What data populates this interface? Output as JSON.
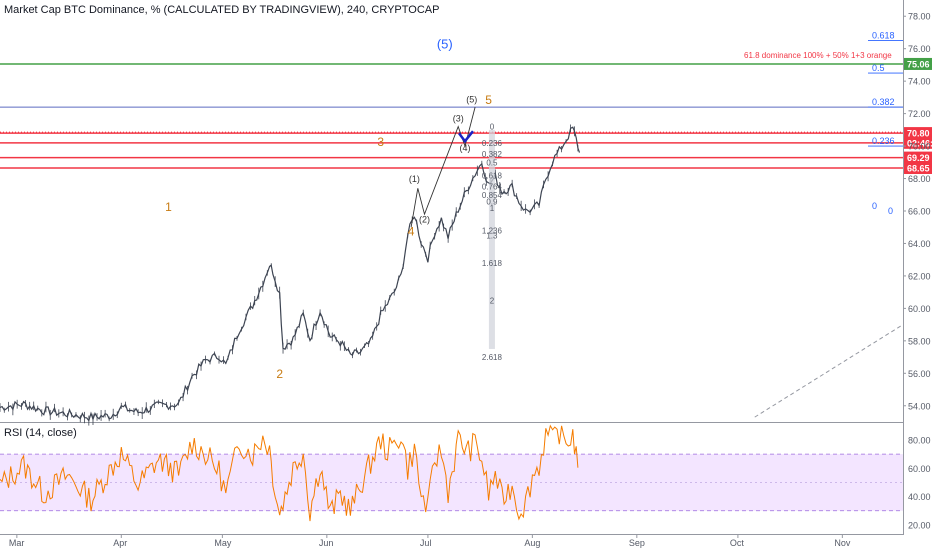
{
  "header": {
    "title": "Market Cap BTC Dominance, % (CALCULATED BY TRADINGVIEW), 240, CRYPTOCAP",
    "rsi_title": "RSI (14, close)"
  },
  "colors": {
    "price_up": "#26a69a",
    "price_down": "#ef5350",
    "candle": "#3d4452",
    "red_line": "#f23645",
    "green_line": "#43a047",
    "blue_line": "#5c6bc0",
    "fib_blue": "#2962ff",
    "wave_orange": "#c77b12",
    "rsi_line": "#f57c00",
    "rsi_band": "#f3e5ff"
  },
  "chart_data": [
    {
      "type": "line",
      "title": "Market Cap BTC Dominance, % (CALCULATED BY TRADINGVIEW), 240, CRYPTOCAP",
      "x_ticks": [
        "Mar",
        "Apr",
        "May",
        "Jun",
        "Jul",
        "Aug",
        "Sep",
        "Oct",
        "Nov"
      ],
      "y_ticks": [
        "54.00",
        "56.00",
        "58.00",
        "60.00",
        "62.00",
        "64.00",
        "66.00",
        "68.00",
        "70.00",
        "72.00",
        "74.00",
        "76.00",
        "78.00"
      ],
      "ylim": [
        53.0,
        79.0
      ],
      "x_days": [
        0,
        31,
        61,
        92,
        122,
        153,
        184,
        214,
        245
      ],
      "xlim_days": [
        -5,
        263
      ],
      "series_anchor": [
        [
          -5,
          53.9
        ],
        [
          2,
          54.1
        ],
        [
          8,
          53.7
        ],
        [
          15,
          53.5
        ],
        [
          22,
          53.3
        ],
        [
          28,
          53.4
        ],
        [
          31,
          53.9
        ],
        [
          36,
          53.6
        ],
        [
          42,
          54.0
        ],
        [
          48,
          54.1
        ],
        [
          52,
          55.8
        ],
        [
          56,
          56.8
        ],
        [
          60,
          57.1
        ],
        [
          62,
          56.5
        ],
        [
          66,
          58.7
        ],
        [
          70,
          60.2
        ],
        [
          73,
          61.6
        ],
        [
          75,
          62.7
        ],
        [
          76,
          62.3
        ],
        [
          78,
          60.9
        ],
        [
          79,
          57.6
        ],
        [
          82,
          58.1
        ],
        [
          85,
          59.6
        ],
        [
          87,
          58.1
        ],
        [
          90,
          59.9
        ],
        [
          93,
          58.3
        ],
        [
          96,
          57.9
        ],
        [
          99,
          57.1
        ],
        [
          102,
          57.3
        ],
        [
          105,
          57.9
        ],
        [
          108,
          59.6
        ],
        [
          110,
          60.3
        ],
        [
          112,
          61.0
        ],
        [
          114,
          62.0
        ],
        [
          116,
          64.5
        ],
        [
          118,
          65.8
        ],
        [
          120,
          64.1
        ],
        [
          122,
          63.1
        ],
        [
          124,
          64.7
        ],
        [
          126,
          65.5
        ],
        [
          128,
          64.4
        ],
        [
          131,
          66.1
        ],
        [
          134,
          67.5
        ],
        [
          136,
          68.3
        ],
        [
          138,
          69.0
        ],
        [
          140,
          67.6
        ],
        [
          142,
          68.1
        ],
        [
          144,
          67.2
        ],
        [
          147,
          67.5
        ],
        [
          149,
          66.6
        ],
        [
          151,
          66.0
        ],
        [
          153,
          66.1
        ],
        [
          155,
          66.4
        ],
        [
          157,
          68.0
        ],
        [
          159,
          69.1
        ],
        [
          161,
          69.7
        ],
        [
          163,
          70.4
        ],
        [
          165,
          71.1
        ],
        [
          166,
          70.4
        ],
        [
          167,
          69.6
        ]
      ],
      "hlines": [
        {
          "name": "green",
          "value": 75.06,
          "label": "75.06"
        },
        {
          "name": "red-top",
          "value": 70.8,
          "label": "70.80"
        },
        {
          "name": "red-mid",
          "value": 70.2,
          "label": "02:46:16"
        },
        {
          "name": "red-2",
          "value": 69.29,
          "label": "69.29"
        },
        {
          "name": "red-3",
          "value": 68.65,
          "label": "68.65"
        },
        {
          "name": "blue",
          "value": 72.4,
          "label": ""
        }
      ],
      "fib_right": [
        {
          "level": "0.618",
          "value": 76.5
        },
        {
          "level": "0.5",
          "value": 74.5
        },
        {
          "level": "0.382",
          "value": 72.4
        },
        {
          "level": "0.236",
          "value": 70.0
        },
        {
          "level": "0",
          "value": 66.0
        }
      ],
      "fib_mid": [
        "0",
        "0.236",
        "0.382",
        "0.5",
        "0.618",
        "0.764",
        "0.854",
        "0.9",
        "1",
        "1.236",
        "1.3",
        "1.618",
        "2",
        "2.618"
      ],
      "annotation": "61.8 dominance 100% + 50% 1+3 orange",
      "wave_labels": {
        "big_5": "(5)",
        "w1": "1",
        "w2": "2",
        "w3": "3",
        "w4": "4",
        "w5": "5",
        "s1": "(1)",
        "s2": "(2)",
        "s3": "(3)",
        "s4": "(4)",
        "s5": "(5)"
      }
    },
    {
      "type": "line",
      "title": "RSI (14, close)",
      "y_ticks": [
        "20.00",
        "40.00",
        "60.00",
        "80.00"
      ],
      "ylim": [
        15,
        92
      ],
      "band": [
        30,
        70
      ],
      "midline": 50,
      "series_anchor": [
        [
          -5,
          48
        ],
        [
          2,
          62
        ],
        [
          8,
          42
        ],
        [
          15,
          55
        ],
        [
          22,
          38
        ],
        [
          28,
          60
        ],
        [
          31,
          70
        ],
        [
          36,
          48
        ],
        [
          42,
          66
        ],
        [
          48,
          56
        ],
        [
          52,
          78
        ],
        [
          56,
          70
        ],
        [
          60,
          58
        ],
        [
          62,
          42
        ],
        [
          66,
          78
        ],
        [
          70,
          70
        ],
        [
          73,
          82
        ],
        [
          75,
          74
        ],
        [
          76,
          55
        ],
        [
          78,
          28
        ],
        [
          79,
          36
        ],
        [
          82,
          60
        ],
        [
          85,
          72
        ],
        [
          87,
          30
        ],
        [
          90,
          62
        ],
        [
          93,
          28
        ],
        [
          96,
          42
        ],
        [
          99,
          30
        ],
        [
          102,
          48
        ],
        [
          105,
          64
        ],
        [
          108,
          80
        ],
        [
          110,
          72
        ],
        [
          112,
          76
        ],
        [
          114,
          84
        ],
        [
          116,
          60
        ],
        [
          118,
          74
        ],
        [
          120,
          40
        ],
        [
          122,
          32
        ],
        [
          124,
          66
        ],
        [
          126,
          72
        ],
        [
          128,
          44
        ],
        [
          131,
          80
        ],
        [
          134,
          72
        ],
        [
          136,
          78
        ],
        [
          138,
          66
        ],
        [
          140,
          42
        ],
        [
          142,
          56
        ],
        [
          144,
          38
        ],
        [
          147,
          48
        ],
        [
          149,
          30
        ],
        [
          151,
          36
        ],
        [
          153,
          54
        ],
        [
          155,
          62
        ],
        [
          157,
          84
        ],
        [
          159,
          80
        ],
        [
          161,
          86
        ],
        [
          163,
          78
        ],
        [
          165,
          84
        ],
        [
          166,
          70
        ],
        [
          167,
          64
        ]
      ]
    }
  ]
}
